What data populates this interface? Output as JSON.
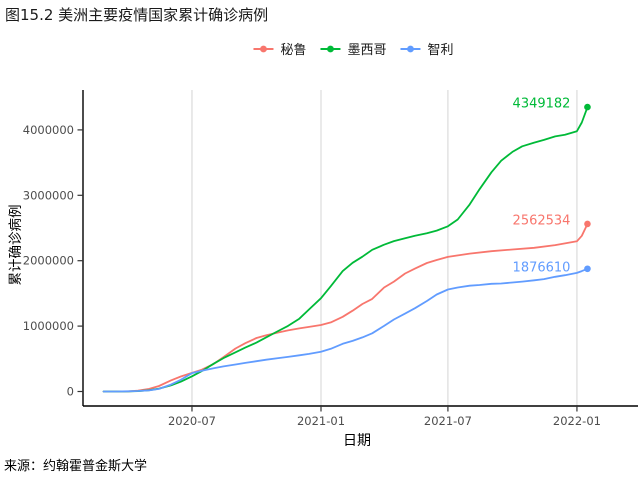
{
  "title": "图15.2 美洲主要疫情国家累计确诊病例",
  "caption": "来源：约翰霍普金斯大学",
  "legend": {
    "position": "top",
    "items": [
      {
        "id": "peru",
        "label": "秘鲁",
        "color": "#F8766D"
      },
      {
        "id": "mexico",
        "label": "墨西哥",
        "color": "#00BA38"
      },
      {
        "id": "chile",
        "label": "智利",
        "color": "#619CFF"
      }
    ]
  },
  "chart_data": {
    "type": "line",
    "title": "图15.2 美洲主要疫情国家累计确诊病例",
    "xlabel": "日期",
    "ylabel": "累计确诊病例",
    "source": "来源：约翰霍普金斯大学",
    "grid": "vertical-major-only",
    "legend_position": "top-center",
    "colors": {
      "axis": "#000000",
      "tick": "#333333",
      "tick_label": "#4d4d4d",
      "gridline": "#d4d4d4",
      "background": "#ffffff"
    },
    "xlim": [
      "2020-02-26",
      "2022-02-01"
    ],
    "ylim": [
      0,
      4650000
    ],
    "x_ticks": [
      {
        "label": "2020-07",
        "date": "2020-07-01"
      },
      {
        "label": "2021-01",
        "date": "2021-01-01"
      },
      {
        "label": "2021-07",
        "date": "2021-07-01"
      },
      {
        "label": "2022-01",
        "date": "2022-01-01"
      }
    ],
    "y_ticks": [
      {
        "label": "0",
        "value": 0
      },
      {
        "label": "1000000",
        "value": 1000000
      },
      {
        "label": "2000000",
        "value": 2000000
      },
      {
        "label": "3000000",
        "value": 3000000
      },
      {
        "label": "4000000",
        "value": 4000000
      }
    ],
    "series": [
      {
        "id": "peru",
        "name": "秘鲁",
        "color": "#F8766D",
        "end_label": "2562534",
        "end_value": 2562534,
        "end_date": "2022-01-16",
        "label_dy": -4,
        "points": [
          [
            "2020-02-26",
            0
          ],
          [
            "2020-03-15",
            86
          ],
          [
            "2020-04-01",
            1323
          ],
          [
            "2020-04-15",
            11475
          ],
          [
            "2020-05-01",
            40459
          ],
          [
            "2020-05-15",
            84495
          ],
          [
            "2020-06-01",
            170039
          ],
          [
            "2020-06-15",
            229736
          ],
          [
            "2020-07-01",
            285213
          ],
          [
            "2020-07-15",
            333867
          ],
          [
            "2020-08-01",
            422183
          ],
          [
            "2020-08-15",
            525803
          ],
          [
            "2020-09-01",
            657129
          ],
          [
            "2020-09-15",
            738020
          ],
          [
            "2020-10-01",
            818297
          ],
          [
            "2020-10-15",
            859740
          ],
          [
            "2020-11-01",
            902503
          ],
          [
            "2020-11-15",
            934899
          ],
          [
            "2020-12-01",
            965228
          ],
          [
            "2020-12-15",
            987675
          ],
          [
            "2021-01-01",
            1017199
          ],
          [
            "2021-01-15",
            1056023
          ],
          [
            "2021-02-01",
            1142716
          ],
          [
            "2021-02-15",
            1235852
          ],
          [
            "2021-03-01",
            1338297
          ],
          [
            "2021-03-15",
            1416038
          ],
          [
            "2021-04-01",
            1590219
          ],
          [
            "2021-04-15",
            1681063
          ],
          [
            "2021-05-01",
            1804915
          ],
          [
            "2021-05-15",
            1879049
          ],
          [
            "2021-06-01",
            1965432
          ],
          [
            "2021-06-15",
            2011133
          ],
          [
            "2021-07-01",
            2057554
          ],
          [
            "2021-08-01",
            2107873
          ],
          [
            "2021-09-01",
            2145413
          ],
          [
            "2021-10-01",
            2171374
          ],
          [
            "2021-11-01",
            2196641
          ],
          [
            "2021-12-01",
            2238421
          ],
          [
            "2022-01-01",
            2296831
          ],
          [
            "2022-01-08",
            2380712
          ],
          [
            "2022-01-16",
            2562534
          ]
        ]
      },
      {
        "id": "mexico",
        "name": "墨西哥",
        "color": "#00BA38",
        "end_label": "4349182",
        "end_value": 4349182,
        "end_date": "2022-01-16",
        "label_dy": -4,
        "points": [
          [
            "2020-02-26",
            0
          ],
          [
            "2020-03-15",
            41
          ],
          [
            "2020-04-01",
            1378
          ],
          [
            "2020-04-15",
            5399
          ],
          [
            "2020-05-01",
            19224
          ],
          [
            "2020-05-15",
            45032
          ],
          [
            "2020-06-01",
            93435
          ],
          [
            "2020-06-15",
            150264
          ],
          [
            "2020-07-01",
            231770
          ],
          [
            "2020-07-15",
            311486
          ],
          [
            "2020-08-01",
            424637
          ],
          [
            "2020-08-15",
            511369
          ],
          [
            "2020-09-01",
            599560
          ],
          [
            "2020-09-15",
            671716
          ],
          [
            "2020-10-01",
            748315
          ],
          [
            "2020-10-15",
            829396
          ],
          [
            "2020-11-01",
            924962
          ],
          [
            "2020-11-15",
            1003253
          ],
          [
            "2020-12-01",
            1113543
          ],
          [
            "2020-12-15",
            1255974
          ],
          [
            "2021-01-01",
            1426094
          ],
          [
            "2021-01-15",
            1609735
          ],
          [
            "2021-02-01",
            1841313
          ],
          [
            "2021-02-15",
            1968566
          ],
          [
            "2021-03-01",
            2061908
          ],
          [
            "2021-03-15",
            2166290
          ],
          [
            "2021-04-01",
            2244268
          ],
          [
            "2021-04-15",
            2299939
          ],
          [
            "2021-05-01",
            2344755
          ],
          [
            "2021-05-15",
            2382745
          ],
          [
            "2021-06-01",
            2420659
          ],
          [
            "2021-06-15",
            2459601
          ],
          [
            "2021-07-01",
            2525350
          ],
          [
            "2021-07-15",
            2629648
          ],
          [
            "2021-08-01",
            2861498
          ],
          [
            "2021-08-15",
            3091971
          ],
          [
            "2021-09-01",
            3352410
          ],
          [
            "2021-09-15",
            3528972
          ],
          [
            "2021-10-01",
            3664223
          ],
          [
            "2021-10-15",
            3749860
          ],
          [
            "2021-11-01",
            3805765
          ],
          [
            "2021-11-15",
            3847243
          ],
          [
            "2021-12-01",
            3900293
          ],
          [
            "2021-12-15",
            3926693
          ],
          [
            "2022-01-01",
            3979723
          ],
          [
            "2022-01-08",
            4113789
          ],
          [
            "2022-01-16",
            4349182
          ]
        ]
      },
      {
        "id": "chile",
        "name": "智利",
        "color": "#619CFF",
        "end_label": "1876610",
        "end_value": 1876610,
        "end_date": "2022-01-16",
        "label_dy": -2,
        "points": [
          [
            "2020-02-26",
            0
          ],
          [
            "2020-03-15",
            61
          ],
          [
            "2020-04-01",
            3031
          ],
          [
            "2020-04-15",
            7917
          ],
          [
            "2020-05-01",
            17008
          ],
          [
            "2020-05-15",
            39542
          ],
          [
            "2020-06-01",
            105159
          ],
          [
            "2020-06-15",
            179436
          ],
          [
            "2020-07-01",
            282043
          ],
          [
            "2020-07-15",
            317657
          ],
          [
            "2020-08-01",
            355667
          ],
          [
            "2020-08-15",
            383902
          ],
          [
            "2020-09-01",
            413145
          ],
          [
            "2020-09-15",
            437983
          ],
          [
            "2020-10-01",
            462991
          ],
          [
            "2020-10-15",
            486496
          ],
          [
            "2020-11-01",
            510256
          ],
          [
            "2020-11-15",
            529676
          ],
          [
            "2020-12-01",
            552864
          ],
          [
            "2020-12-15",
            575329
          ],
          [
            "2021-01-01",
            608973
          ],
          [
            "2021-01-15",
            652525
          ],
          [
            "2021-02-01",
            729077
          ],
          [
            "2021-02-15",
            774327
          ],
          [
            "2021-03-01",
            827432
          ],
          [
            "2021-03-15",
            890418
          ],
          [
            "2021-04-01",
            1003406
          ],
          [
            "2021-04-15",
            1100673
          ],
          [
            "2021-05-01",
            1190991
          ],
          [
            "2021-05-15",
            1273516
          ],
          [
            "2021-06-01",
            1384346
          ],
          [
            "2021-06-15",
            1482663
          ],
          [
            "2021-07-01",
            1559218
          ],
          [
            "2021-07-15",
            1589457
          ],
          [
            "2021-08-01",
            1617829
          ],
          [
            "2021-08-15",
            1628507
          ],
          [
            "2021-09-01",
            1646403
          ],
          [
            "2021-09-15",
            1650985
          ],
          [
            "2021-10-01",
            1666936
          ],
          [
            "2021-10-15",
            1680740
          ],
          [
            "2021-11-01",
            1699737
          ],
          [
            "2021-11-15",
            1718442
          ],
          [
            "2021-12-01",
            1754354
          ],
          [
            "2021-12-15",
            1777632
          ],
          [
            "2022-01-01",
            1813560
          ],
          [
            "2022-01-08",
            1840635
          ],
          [
            "2022-01-16",
            1876610
          ]
        ]
      }
    ]
  }
}
